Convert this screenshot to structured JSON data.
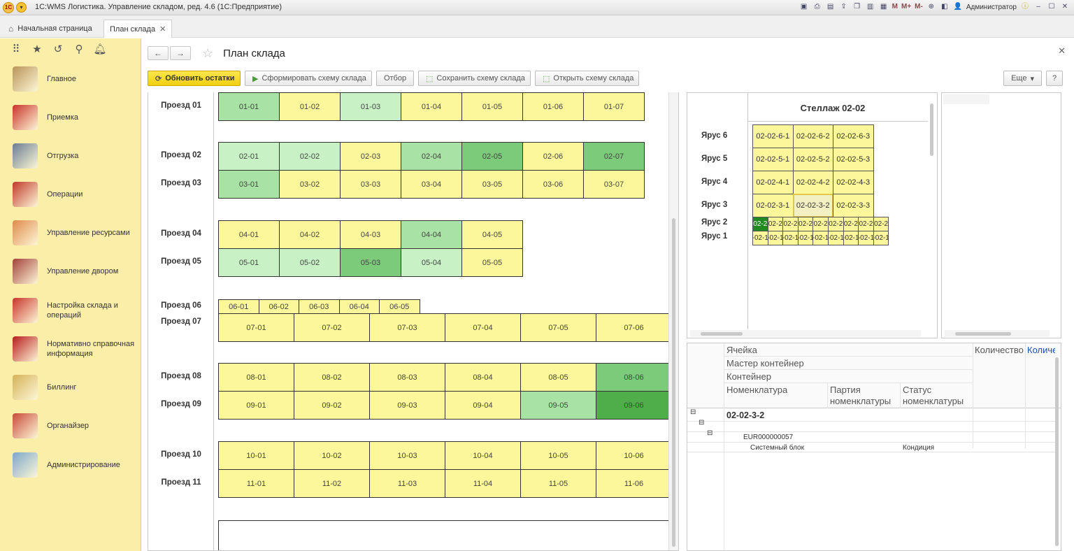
{
  "window": {
    "title": "1С:WMS Логистика. Управление складом, ред. 4.6  (1С:Предприятие)",
    "user": "Администратор",
    "memory_buttons": [
      "M",
      "M+",
      "M-"
    ]
  },
  "tabs": [
    {
      "label": "Начальная страница"
    },
    {
      "label": "План склада",
      "active": true
    }
  ],
  "sidebar": {
    "items": [
      {
        "label": "Главное",
        "icon": "desk-icon"
      },
      {
        "label": "Приемка",
        "icon": "boxes-icon"
      },
      {
        "label": "Отгрузка",
        "icon": "truck-icon"
      },
      {
        "label": "Операции",
        "icon": "clipboard-icon"
      },
      {
        "label": "Управление ресурсами",
        "icon": "worker-icon"
      },
      {
        "label": "Управление двором",
        "icon": "lorry-icon"
      },
      {
        "label": "Настройка склада и операций",
        "icon": "shelves-icon"
      },
      {
        "label": "Нормативно справочная информация",
        "icon": "binders-icon"
      },
      {
        "label": "Биллинг",
        "icon": "coins-icon"
      },
      {
        "label": "Органайзер",
        "icon": "question-note-icon"
      },
      {
        "label": "Администрирование",
        "icon": "server-icon"
      }
    ]
  },
  "page": {
    "title": "План склада",
    "toolbar": {
      "refresh": "Обновить остатки",
      "build": "Сформировать схему склада",
      "filter": "Отбор",
      "save": "Сохранить схему склада",
      "open": "Открыть схему склада",
      "more": "Еще",
      "help": "?"
    }
  },
  "colors": {
    "yellow": "#fbf79a",
    "green_1": "#c8f2c6",
    "green_2": "#a8e2a4",
    "green_3": "#7ccb7a",
    "green_4": "#4fae4a",
    "dark_green": "#1f8a1f"
  },
  "plan": {
    "rows": [
      {
        "label": "Проезд 01",
        "cells": [
          "01-01",
          "01-02",
          "01-03",
          "01-04",
          "01-05",
          "01-06",
          "01-07"
        ],
        "shades": [
          2,
          0,
          1,
          0,
          0,
          0,
          0
        ]
      },
      {
        "label": "Проезд 02",
        "cells": [
          "02-01",
          "02-02",
          "02-03",
          "02-04",
          "02-05",
          "02-06",
          "02-07"
        ],
        "shades": [
          1,
          1,
          0,
          2,
          3,
          0,
          3
        ]
      },
      {
        "label": "Проезд 03",
        "cells": [
          "03-01",
          "03-02",
          "03-03",
          "03-04",
          "03-05",
          "03-06",
          "03-07"
        ],
        "shades": [
          2,
          0,
          0,
          0,
          0,
          0,
          0
        ]
      },
      {
        "label": "Проезд 04",
        "cells": [
          "04-01",
          "04-02",
          "04-03",
          "04-04",
          "04-05"
        ],
        "shades": [
          0,
          0,
          0,
          2,
          0
        ]
      },
      {
        "label": "Проезд 05",
        "cells": [
          "05-01",
          "05-02",
          "05-03",
          "05-04",
          "05-05"
        ],
        "shades": [
          1,
          1,
          3,
          1,
          0
        ]
      },
      {
        "label": "Проезд 06",
        "cells": [
          "06-01",
          "06-02",
          "06-03",
          "06-04",
          "06-05"
        ],
        "shades": [
          0,
          0,
          0,
          0,
          0
        ]
      },
      {
        "label": "Проезд 07",
        "cells": [
          "07-01",
          "07-02",
          "07-03",
          "07-04",
          "07-05",
          "07-06"
        ],
        "shades": [
          0,
          0,
          0,
          0,
          0,
          0
        ]
      },
      {
        "label": "Проезд 08",
        "cells": [
          "08-01",
          "08-02",
          "08-03",
          "08-04",
          "08-05",
          "08-06"
        ],
        "shades": [
          0,
          0,
          0,
          0,
          0,
          3
        ]
      },
      {
        "label": "Проезд 09",
        "cells": [
          "09-01",
          "09-02",
          "09-03",
          "09-04",
          "09-05",
          "09-06"
        ],
        "shades": [
          0,
          0,
          0,
          0,
          2,
          4
        ]
      },
      {
        "label": "Проезд 10",
        "cells": [
          "10-01",
          "10-02",
          "10-03",
          "10-04",
          "10-05",
          "10-06"
        ],
        "shades": [
          0,
          0,
          0,
          0,
          0,
          0
        ]
      },
      {
        "label": "Проезд 11",
        "cells": [
          "11-01",
          "11-02",
          "11-03",
          "11-04",
          "11-05",
          "11-06"
        ],
        "shades": [
          0,
          0,
          0,
          0,
          0,
          0
        ]
      }
    ]
  },
  "rack": {
    "title": "Стеллаж 02-02",
    "tiers": [
      {
        "label": "Ярус 6",
        "cells": [
          "02-02-6-1",
          "02-02-6-2",
          "02-02-6-3"
        ]
      },
      {
        "label": "Ярус 5",
        "cells": [
          "02-02-5-1",
          "02-02-5-2",
          "02-02-5-3"
        ]
      },
      {
        "label": "Ярус 4",
        "cells": [
          "02-02-4-1",
          "02-02-4-2",
          "02-02-4-3"
        ]
      },
      {
        "label": "Ярус 3",
        "cells": [
          "02-02-3-1",
          "02-02-3-2",
          "02-02-3-3"
        ],
        "selected": 1
      },
      {
        "label": "Ярус 2",
        "cells": [
          "02-2",
          "02-2",
          "02-2",
          "02-2",
          "02-2",
          "02-2",
          "02-2",
          "02-2",
          "02-2"
        ],
        "first_dark": true
      },
      {
        "label": "Ярус 1",
        "cells": [
          "-02-1",
          "-02-1",
          "-02-1",
          "-02-1",
          "-02-1",
          "-02-1",
          "-02-1",
          "-02-1",
          "-02-1"
        ]
      }
    ]
  },
  "details": {
    "headers": {
      "cell": "Ячейка",
      "master": "Мастер контейнер",
      "container": "Контейнер",
      "nomenclature": "Номенклатура",
      "batch": "Партия номенклатуры",
      "status": "Статус номенклатуры",
      "qty": "Количество",
      "qty_plan": "Количество план г"
    },
    "rows": {
      "cell_value": "02-02-3-2",
      "container_value": "EUR000000057",
      "nomenclature_value": "Системный блок",
      "status_value": "Кондиция"
    }
  }
}
